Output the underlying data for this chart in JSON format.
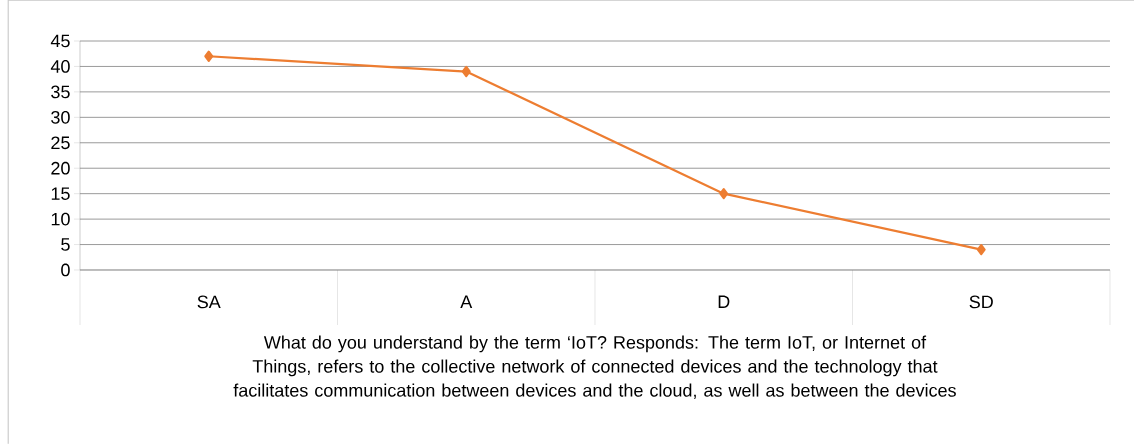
{
  "chart_data": {
    "type": "line",
    "xlabel": "What do you understand by the term ‘IoT?  Responds: The term IoT, or Internet of Things, refers to the collective network of connected devices and the technology that facilitates communication between devices and the cloud, as well as between the devices",
    "categories": [
      "SA",
      "A",
      "D",
      "SD"
    ],
    "series": [
      {
        "color": "#ed7d31",
        "values": [
          42,
          39,
          15,
          4
        ]
      }
    ],
    "ylim": [
      0,
      45
    ],
    "yticks": [
      0,
      5,
      10,
      15,
      20,
      25,
      30,
      35,
      40,
      45
    ],
    "grid": "y",
    "marker": "diamond",
    "line_style": "solid"
  }
}
